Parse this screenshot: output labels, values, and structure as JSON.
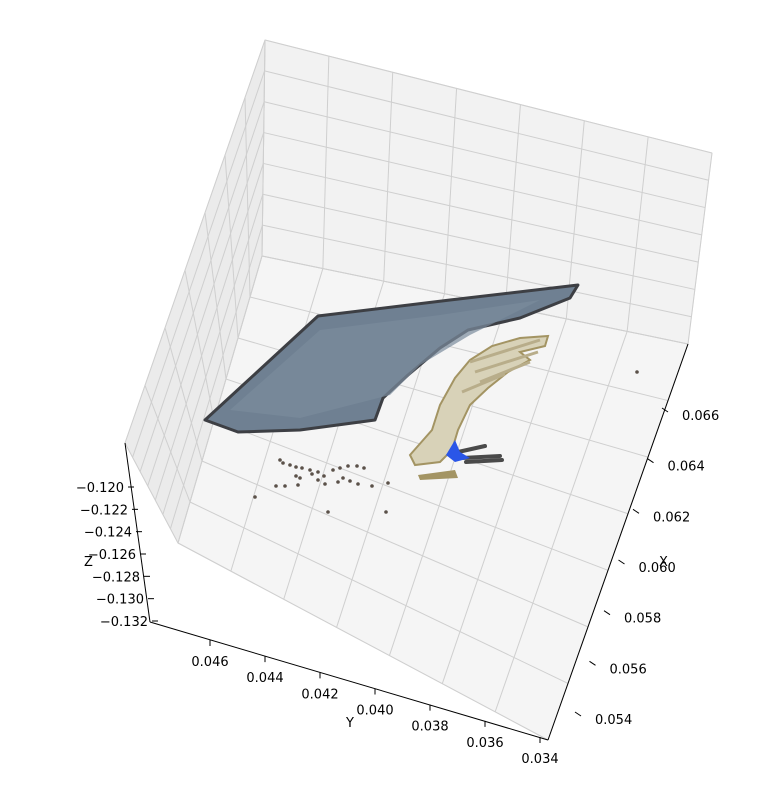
{
  "chart_data": {
    "type": "scatter",
    "projection": "3d",
    "title": "",
    "xlabel": "X",
    "ylabel": "Y",
    "zlabel": "Z",
    "x_ticks": [
      "0.054",
      "0.056",
      "0.058",
      "0.060",
      "0.062",
      "0.064",
      "0.066"
    ],
    "y_ticks": [
      "0.046",
      "0.044",
      "0.042",
      "0.040",
      "0.038",
      "0.036",
      "0.034"
    ],
    "z_ticks": [
      "−0.120",
      "−0.122",
      "−0.124",
      "−0.126",
      "−0.128",
      "−0.130",
      "−0.132"
    ],
    "xlim": [
      0.053,
      0.067
    ],
    "ylim": [
      0.033,
      0.047
    ],
    "zlim": [
      -0.1325,
      -0.1195
    ],
    "grid": true,
    "series": [
      {
        "kind": "point-cloud-surface",
        "color": "#6f8092",
        "edge_color": "#3d3f44"
      },
      {
        "kind": "point-cloud-hand",
        "color": "#d8d2b8",
        "shadow_color": "#a39463"
      },
      {
        "kind": "point-cloud-marker",
        "color": "#2a56e8"
      },
      {
        "kind": "outlier-points",
        "color": "#5b5149"
      }
    ]
  }
}
